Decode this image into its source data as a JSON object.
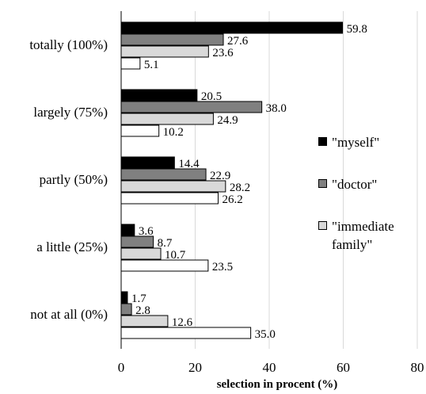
{
  "chart_data": {
    "type": "bar",
    "orientation": "horizontal",
    "categories": [
      "totally (100%)",
      "largely (75%)",
      "partly (50%)",
      "a little (25%)",
      "not at all (0%)"
    ],
    "series": [
      {
        "name": "\"myself\"",
        "color": "#000000",
        "values": [
          59.8,
          20.5,
          14.4,
          3.6,
          1.7
        ]
      },
      {
        "name": "\"doctor\"",
        "color": "#808080",
        "values": [
          27.6,
          38.0,
          22.9,
          8.7,
          2.8
        ]
      },
      {
        "name": "\"immediate family\"",
        "color": "#d9d9d9",
        "values": [
          23.6,
          24.9,
          28.2,
          10.7,
          12.6
        ]
      },
      {
        "name": "",
        "color": "#ffffff",
        "values": [
          5.1,
          10.2,
          26.2,
          23.5,
          35.0
        ]
      }
    ],
    "value_labels": [
      [
        "59.8",
        "20.5",
        "14.4",
        "3.6",
        "1.7"
      ],
      [
        "27.6",
        "38.0",
        "22.9",
        "8.7",
        "2.8"
      ],
      [
        "23.6",
        "24.9",
        "28.2",
        "10.7",
        "12.6"
      ],
      [
        "5.1",
        "10.2",
        "26.2",
        "23.5",
        "35.0"
      ]
    ],
    "xticks": [
      "0",
      "20",
      "40",
      "60",
      "80"
    ],
    "xlim": [
      0,
      80
    ],
    "xlabel": "selection in procent (%)",
    "ylabel": "",
    "title": "",
    "grid": "vertical",
    "legend_position": "right",
    "legend_labels": [
      "\"myself\"",
      "\"doctor\"",
      "\"immediate family\""
    ]
  }
}
